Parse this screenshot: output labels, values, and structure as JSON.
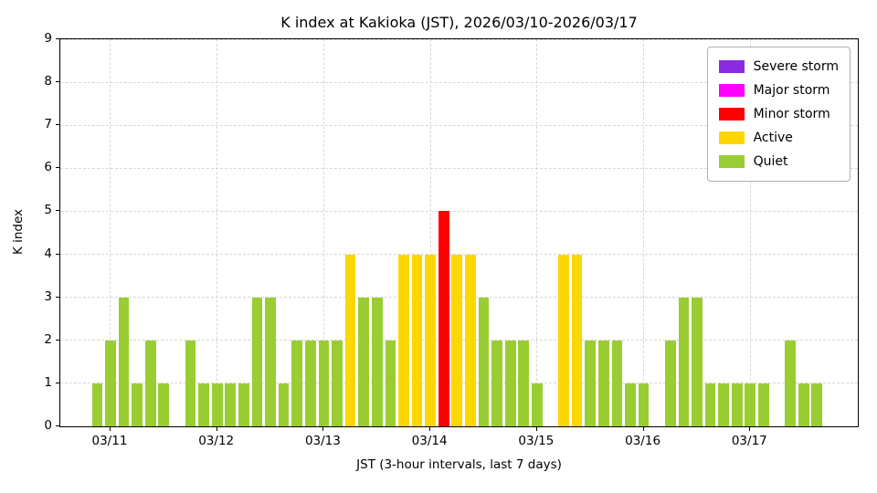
{
  "chart_data": {
    "type": "bar",
    "title": "K index at Kakioka (JST), 2026/03/10-2026/03/17",
    "xlabel": "JST (3-hour intervals, last 7 days)",
    "ylabel": "K index",
    "ylim": [
      0,
      9
    ],
    "yticks": [
      0,
      1,
      2,
      3,
      4,
      5,
      6,
      7,
      8,
      9
    ],
    "x_tick_labels": [
      "03/11",
      "03/12",
      "03/13",
      "03/14",
      "03/15",
      "03/16",
      "03/17"
    ],
    "x_axis_hours_range": [
      12.7,
      192.2
    ],
    "interval_hours": 3,
    "grid": true,
    "legend_position": "upper right",
    "legend": [
      {
        "label": "Severe storm",
        "color": "#8a2be2"
      },
      {
        "label": "Major storm",
        "color": "#ff00ff"
      },
      {
        "label": "Minor storm",
        "color": "#ff0000"
      },
      {
        "label": "Active",
        "color": "#ffd700"
      },
      {
        "label": "Quiet",
        "color": "#9acd32"
      }
    ],
    "color_rules": {
      "severe_min_k": 7,
      "major_k": 6,
      "minor_k": 5,
      "active_k": 4,
      "quiet_max_k": 3
    },
    "points": [
      [
        "03/10 21:00",
        1
      ],
      [
        "03/11 00:00",
        2
      ],
      [
        "03/11 03:00",
        3
      ],
      [
        "03/11 06:00",
        1
      ],
      [
        "03/11 09:00",
        2
      ],
      [
        "03/11 12:00",
        1
      ],
      [
        "03/11 15:00",
        0
      ],
      [
        "03/11 18:00",
        2
      ],
      [
        "03/11 21:00",
        1
      ],
      [
        "03/12 00:00",
        1
      ],
      [
        "03/12 03:00",
        1
      ],
      [
        "03/12 06:00",
        1
      ],
      [
        "03/12 09:00",
        3
      ],
      [
        "03/12 12:00",
        3
      ],
      [
        "03/12 15:00",
        1
      ],
      [
        "03/12 18:00",
        2
      ],
      [
        "03/12 21:00",
        2
      ],
      [
        "03/13 00:00",
        2
      ],
      [
        "03/13 03:00",
        2
      ],
      [
        "03/13 06:00",
        4
      ],
      [
        "03/13 09:00",
        3
      ],
      [
        "03/13 12:00",
        3
      ],
      [
        "03/13 15:00",
        2
      ],
      [
        "03/13 18:00",
        4
      ],
      [
        "03/13 21:00",
        4
      ],
      [
        "03/14 00:00",
        4
      ],
      [
        "03/14 03:00",
        5
      ],
      [
        "03/14 06:00",
        4
      ],
      [
        "03/14 09:00",
        4
      ],
      [
        "03/14 12:00",
        3
      ],
      [
        "03/14 15:00",
        2
      ],
      [
        "03/14 18:00",
        2
      ],
      [
        "03/14 21:00",
        2
      ],
      [
        "03/15 00:00",
        1
      ],
      [
        "03/15 03:00",
        0
      ],
      [
        "03/15 06:00",
        4
      ],
      [
        "03/15 09:00",
        4
      ],
      [
        "03/15 12:00",
        2
      ],
      [
        "03/15 15:00",
        2
      ],
      [
        "03/15 18:00",
        2
      ],
      [
        "03/15 21:00",
        1
      ],
      [
        "03/16 00:00",
        1
      ],
      [
        "03/16 03:00",
        0
      ],
      [
        "03/16 06:00",
        2
      ],
      [
        "03/16 09:00",
        3
      ],
      [
        "03/16 12:00",
        3
      ],
      [
        "03/16 15:00",
        1
      ],
      [
        "03/16 18:00",
        1
      ],
      [
        "03/16 21:00",
        1
      ],
      [
        "03/17 00:00",
        1
      ],
      [
        "03/17 03:00",
        1
      ],
      [
        "03/17 06:00",
        0
      ],
      [
        "03/17 09:00",
        2
      ],
      [
        "03/17 12:00",
        1
      ],
      [
        "03/17 15:00",
        1
      ],
      [
        "03/17 18:00",
        0
      ]
    ]
  }
}
